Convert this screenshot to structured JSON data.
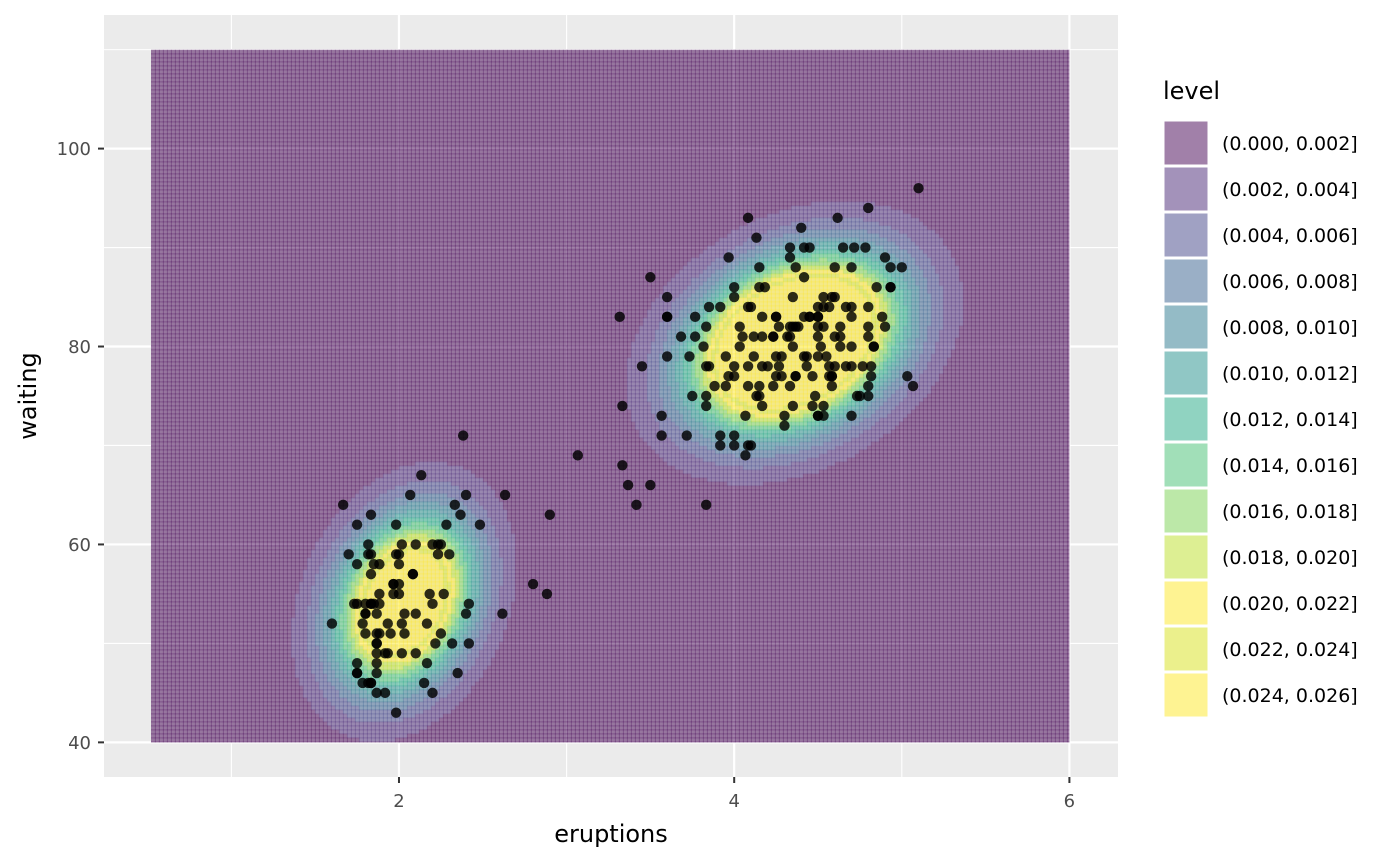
{
  "chart_data": {
    "type": "filled_contour_with_scatter",
    "xlabel": "eruptions",
    "ylabel": "waiting",
    "xlim": [
      0.24,
      6.29
    ],
    "ylim": [
      36.5,
      113.5
    ],
    "density_extent": {
      "x": [
        0.52,
        6.0
      ],
      "y": [
        40,
        110
      ]
    },
    "x_ticks": [
      2,
      4,
      6
    ],
    "y_ticks": [
      40,
      60,
      80,
      100
    ],
    "grid": true,
    "panel_background": "#ebebeb",
    "legend": {
      "title": "level",
      "position": "right",
      "entries": [
        {
          "label": "(0.000, 0.002]",
          "color": "#440154"
        },
        {
          "label": "(0.002, 0.004]",
          "color": "#482576"
        },
        {
          "label": "(0.004, 0.006]",
          "color": "#414487"
        },
        {
          "label": "(0.006, 0.008]",
          "color": "#35608D"
        },
        {
          "label": "(0.008, 0.010]",
          "color": "#2A788E"
        },
        {
          "label": "(0.010, 0.012]",
          "color": "#21908C"
        },
        {
          "label": "(0.012, 0.014]",
          "color": "#22A884"
        },
        {
          "label": "(0.014, 0.016]",
          "color": "#43BF71"
        },
        {
          "label": "(0.016, 0.018]",
          "color": "#7AD151"
        },
        {
          "label": "(0.018, 0.020]",
          "color": "#BBDF27"
        },
        {
          "label": "(0.020, 0.022]",
          "color": "#FDE725"
        },
        {
          "label": "(0.022, 0.024]",
          "color": "#D8E219"
        },
        {
          "label": "(0.024, 0.026]",
          "color": "#FDE725"
        }
      ]
    },
    "fill_alpha": 0.5,
    "density_components": [
      {
        "mean": [
          2.03,
          54.2
        ],
        "sd": [
          0.28,
          5.9
        ],
        "rho": 0.25,
        "weight": 0.352
      },
      {
        "mean": [
          4.36,
          80.4
        ],
        "sd": [
          0.4,
          5.7
        ],
        "rho": 0.29,
        "weight": 0.648
      }
    ],
    "points": [
      [
        3.6,
        79
      ],
      [
        1.8,
        54
      ],
      [
        3.333,
        74
      ],
      [
        2.283,
        62
      ],
      [
        4.533,
        85
      ],
      [
        2.883,
        55
      ],
      [
        4.7,
        88
      ],
      [
        3.6,
        85
      ],
      [
        1.95,
        51
      ],
      [
        4.35,
        85
      ],
      [
        1.833,
        54
      ],
      [
        3.917,
        84
      ],
      [
        4.2,
        78
      ],
      [
        1.75,
        47
      ],
      [
        4.7,
        83
      ],
      [
        2.167,
        52
      ],
      [
        1.75,
        62
      ],
      [
        4.8,
        84
      ],
      [
        1.6,
        52
      ],
      [
        4.25,
        79
      ],
      [
        1.8,
        51
      ],
      [
        1.75,
        47
      ],
      [
        3.45,
        78
      ],
      [
        3.067,
        69
      ],
      [
        4.533,
        74
      ],
      [
        3.6,
        83
      ],
      [
        1.967,
        55
      ],
      [
        4.083,
        76
      ],
      [
        3.85,
        78
      ],
      [
        4.433,
        79
      ],
      [
        4.3,
        73
      ],
      [
        4.467,
        77
      ],
      [
        3.367,
        66
      ],
      [
        4.033,
        80
      ],
      [
        3.833,
        74
      ],
      [
        2.017,
        52
      ],
      [
        1.867,
        48
      ],
      [
        4.833,
        80
      ],
      [
        1.833,
        59
      ],
      [
        4.783,
        90
      ],
      [
        4.35,
        80
      ],
      [
        1.883,
        58
      ],
      [
        4.567,
        84
      ],
      [
        1.75,
        58
      ],
      [
        4.533,
        73
      ],
      [
        3.317,
        83
      ],
      [
        3.833,
        64
      ],
      [
        2.1,
        53
      ],
      [
        4.633,
        82
      ],
      [
        2,
        59
      ],
      [
        4.8,
        75
      ],
      [
        4.716,
        90
      ],
      [
        1.833,
        54
      ],
      [
        4.833,
        80
      ],
      [
        1.733,
        54
      ],
      [
        4.883,
        83
      ],
      [
        3.717,
        71
      ],
      [
        1.667,
        64
      ],
      [
        4.567,
        77
      ],
      [
        4.317,
        81
      ],
      [
        2.233,
        59
      ],
      [
        4.5,
        84
      ],
      [
        1.75,
        48
      ],
      [
        4.8,
        82
      ],
      [
        1.817,
        60
      ],
      [
        4.4,
        92
      ],
      [
        4.167,
        78
      ],
      [
        4.7,
        78
      ],
      [
        2.067,
        65
      ],
      [
        4.7,
        73
      ],
      [
        4.033,
        82
      ],
      [
        1.967,
        56
      ],
      [
        4.5,
        79
      ],
      [
        4,
        71
      ],
      [
        1.983,
        62
      ],
      [
        5.067,
        76
      ],
      [
        2.017,
        60
      ],
      [
        4.567,
        78
      ],
      [
        3.883,
        76
      ],
      [
        3.6,
        83
      ],
      [
        4.133,
        75
      ],
      [
        4.333,
        82
      ],
      [
        4.1,
        70
      ],
      [
        2.633,
        65
      ],
      [
        4.067,
        73
      ],
      [
        4.933,
        88
      ],
      [
        3.95,
        76
      ],
      [
        4.517,
        80
      ],
      [
        2.167,
        48
      ],
      [
        4,
        86
      ],
      [
        2.2,
        60
      ],
      [
        4.333,
        90
      ],
      [
        1.867,
        50
      ],
      [
        4.817,
        78
      ],
      [
        1.833,
        63
      ],
      [
        4.3,
        72
      ],
      [
        4.667,
        84
      ],
      [
        3.75,
        75
      ],
      [
        1.867,
        51
      ],
      [
        4.9,
        82
      ],
      [
        2.483,
        62
      ],
      [
        4.367,
        88
      ],
      [
        2.1,
        49
      ],
      [
        4.5,
        83
      ],
      [
        4.05,
        81
      ],
      [
        1.867,
        47
      ],
      [
        4.7,
        84
      ],
      [
        1.783,
        52
      ],
      [
        4.85,
        86
      ],
      [
        3.683,
        81
      ],
      [
        4.733,
        75
      ],
      [
        2.3,
        59
      ],
      [
        4.9,
        89
      ],
      [
        4.417,
        79
      ],
      [
        1.7,
        59
      ],
      [
        4.633,
        81
      ],
      [
        2.317,
        50
      ],
      [
        4.6,
        85
      ],
      [
        1.817,
        59
      ],
      [
        4.417,
        87
      ],
      [
        2.617,
        53
      ],
      [
        4.067,
        69
      ],
      [
        4.25,
        77
      ],
      [
        1.967,
        56
      ],
      [
        4.6,
        88
      ],
      [
        3.767,
        81
      ],
      [
        1.917,
        45
      ],
      [
        4.5,
        82
      ],
      [
        2.267,
        55
      ],
      [
        4.65,
        90
      ],
      [
        1.867,
        45
      ],
      [
        4.167,
        83
      ],
      [
        2.8,
        56
      ],
      [
        4.333,
        89
      ],
      [
        1.833,
        46
      ],
      [
        4.383,
        82
      ],
      [
        1.883,
        51
      ],
      [
        4.933,
        86
      ],
      [
        2.033,
        53
      ],
      [
        3.733,
        79
      ],
      [
        4.233,
        81
      ],
      [
        2.233,
        60
      ],
      [
        4.533,
        82
      ],
      [
        4.817,
        77
      ],
      [
        4.333,
        76
      ],
      [
        1.983,
        59
      ],
      [
        4.633,
        80
      ],
      [
        2.017,
        49
      ],
      [
        5.1,
        96
      ],
      [
        1.8,
        53
      ],
      [
        5.033,
        77
      ],
      [
        4,
        77
      ],
      [
        2.4,
        65
      ],
      [
        4.6,
        81
      ],
      [
        3.567,
        71
      ],
      [
        4,
        70
      ],
      [
        4.5,
        81
      ],
      [
        4.083,
        93
      ],
      [
        1.8,
        53
      ],
      [
        3.967,
        89
      ],
      [
        2.2,
        45
      ],
      [
        4.15,
        86
      ],
      [
        2,
        58
      ],
      [
        3.833,
        78
      ],
      [
        3.5,
        66
      ],
      [
        4.583,
        76
      ],
      [
        2.367,
        63
      ],
      [
        5,
        88
      ],
      [
        1.933,
        52
      ],
      [
        4.617,
        93
      ],
      [
        1.917,
        49
      ],
      [
        2.083,
        57
      ],
      [
        4.583,
        77
      ],
      [
        3.333,
        68
      ],
      [
        4.167,
        81
      ],
      [
        4.333,
        81
      ],
      [
        4.5,
        73
      ],
      [
        2.417,
        50
      ],
      [
        4,
        85
      ],
      [
        4.167,
        74
      ],
      [
        1.883,
        55
      ],
      [
        4.583,
        77
      ],
      [
        4.25,
        83
      ],
      [
        3.767,
        83
      ],
      [
        2.033,
        51
      ],
      [
        4.433,
        78
      ],
      [
        4.083,
        84
      ],
      [
        1.833,
        46
      ],
      [
        4.417,
        83
      ],
      [
        2.183,
        55
      ],
      [
        4.8,
        81
      ],
      [
        1.833,
        57
      ],
      [
        4.8,
        76
      ],
      [
        4.1,
        84
      ],
      [
        3.966,
        77
      ],
      [
        4.233,
        81
      ],
      [
        3.5,
        87
      ],
      [
        4.366,
        77
      ],
      [
        2.25,
        51
      ],
      [
        4.667,
        78
      ],
      [
        2.1,
        60
      ],
      [
        4.35,
        82
      ],
      [
        4.133,
        91
      ],
      [
        1.867,
        53
      ],
      [
        4.6,
        78
      ],
      [
        1.783,
        46
      ],
      [
        4.367,
        77
      ],
      [
        3.85,
        84
      ],
      [
        1.933,
        49
      ],
      [
        4.5,
        83
      ],
      [
        2.383,
        71
      ],
      [
        4.7,
        80
      ],
      [
        1.867,
        49
      ],
      [
        3.833,
        75
      ],
      [
        3.417,
        64
      ],
      [
        4.233,
        76
      ],
      [
        2.4,
        53
      ],
      [
        4.8,
        94
      ],
      [
        2,
        55
      ],
      [
        4.15,
        76
      ],
      [
        1.867,
        50
      ],
      [
        4.267,
        82
      ],
      [
        1.75,
        54
      ],
      [
        4.483,
        75
      ],
      [
        4,
        78
      ],
      [
        4.117,
        79
      ],
      [
        4.083,
        78
      ],
      [
        4.267,
        78
      ],
      [
        3.917,
        70
      ],
      [
        4.55,
        79
      ],
      [
        4.083,
        70
      ],
      [
        2.417,
        54
      ],
      [
        4.183,
        86
      ],
      [
        2.217,
        50
      ],
      [
        4.45,
        90
      ],
      [
        1.883,
        54
      ],
      [
        1.85,
        54
      ],
      [
        4.283,
        77
      ],
      [
        3.95,
        79
      ],
      [
        2.333,
        64
      ],
      [
        4.15,
        75
      ],
      [
        2.35,
        47
      ],
      [
        4.933,
        86
      ],
      [
        2.9,
        63
      ],
      [
        4.583,
        85
      ],
      [
        3.833,
        82
      ],
      [
        2.083,
        57
      ],
      [
        4.367,
        82
      ],
      [
        2.133,
        67
      ],
      [
        4.35,
        74
      ],
      [
        2.2,
        54
      ],
      [
        4.45,
        83
      ],
      [
        3.567,
        73
      ],
      [
        4.5,
        73
      ],
      [
        4.15,
        88
      ],
      [
        3.817,
        80
      ],
      [
        3.917,
        71
      ],
      [
        4.45,
        83
      ],
      [
        2,
        56
      ],
      [
        4.283,
        79
      ],
      [
        4.767,
        78
      ],
      [
        4.533,
        84
      ],
      [
        1.85,
        58
      ],
      [
        4.25,
        83
      ],
      [
        1.983,
        43
      ],
      [
        2.25,
        60
      ],
      [
        4.75,
        75
      ],
      [
        4.117,
        81
      ],
      [
        2.15,
        46
      ],
      [
        4.417,
        90
      ],
      [
        1.817,
        46
      ],
      [
        4.467,
        74
      ]
    ]
  }
}
